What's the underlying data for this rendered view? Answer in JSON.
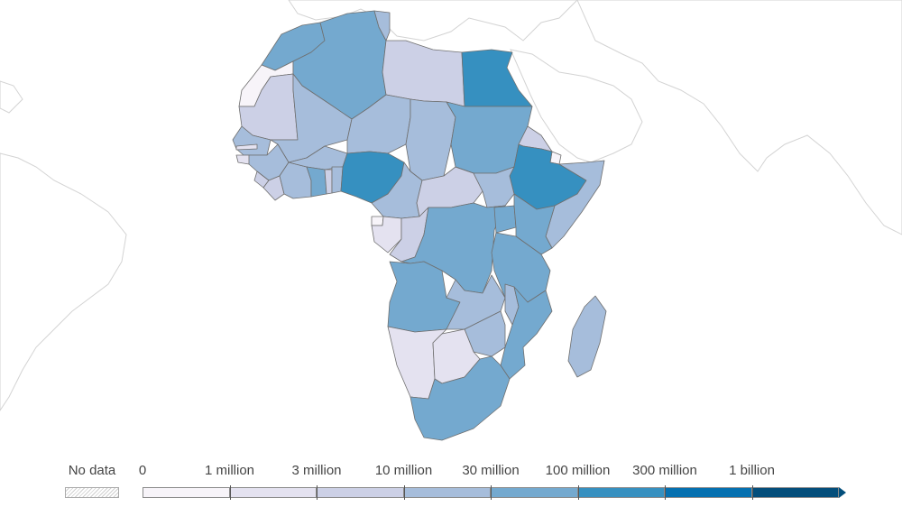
{
  "map": {
    "region": "Africa",
    "country_bins": {
      "egypt": "100 million",
      "nigeria": "100 million",
      "ethiopia": "100 million",
      "algeria": "30 million",
      "morocco": "30 million",
      "sudan": "30 million",
      "drc": "30 million",
      "angola": "30 million",
      "tanzania": "30 million",
      "south-africa": "30 million",
      "kenya": "30 million",
      "mozambique": "30 million",
      "uganda": "30 million",
      "ghana": "30 million",
      "mali": "10 million",
      "niger": "10 million",
      "chad": "10 million",
      "senegal": "10 million",
      "burkina-faso": "10 million",
      "cote-divoire": "10 million",
      "cameroon": "10 million",
      "south-sudan": "10 million",
      "zambia": "10 million",
      "zimbabwe": "10 million",
      "madagascar": "10 million",
      "malawi": "10 million",
      "somalia": "10 million",
      "guinea": "10 million",
      "libya": "3 million",
      "tunisia": "10 million",
      "mauritania": "3 million",
      "car": "3 million",
      "congo": "3 million",
      "eritrea": "3 million",
      "sierra-leone": "3 million",
      "liberia": "3 million",
      "togo": "3 million",
      "benin": "10 million",
      "gabon": "1 million",
      "namibia": "1 million",
      "botswana": "1 million",
      "western-sahara": "0",
      "guinea-bissau": "1 million",
      "gambia": "1 million",
      "djibouti": "0",
      "equatorial-guinea": "0"
    }
  },
  "legend": {
    "no_data_label": "No data",
    "labels": [
      "0",
      "1 million",
      "3 million",
      "10 million",
      "30 million",
      "100 million",
      "300 million",
      "1 billion"
    ],
    "bin_colors": [
      "#f7f4f9",
      "#e4e2f0",
      "#ccd0e6",
      "#a6bddb",
      "#74a9cf",
      "#3690c0",
      "#0570b0",
      "#034e7b"
    ]
  }
}
